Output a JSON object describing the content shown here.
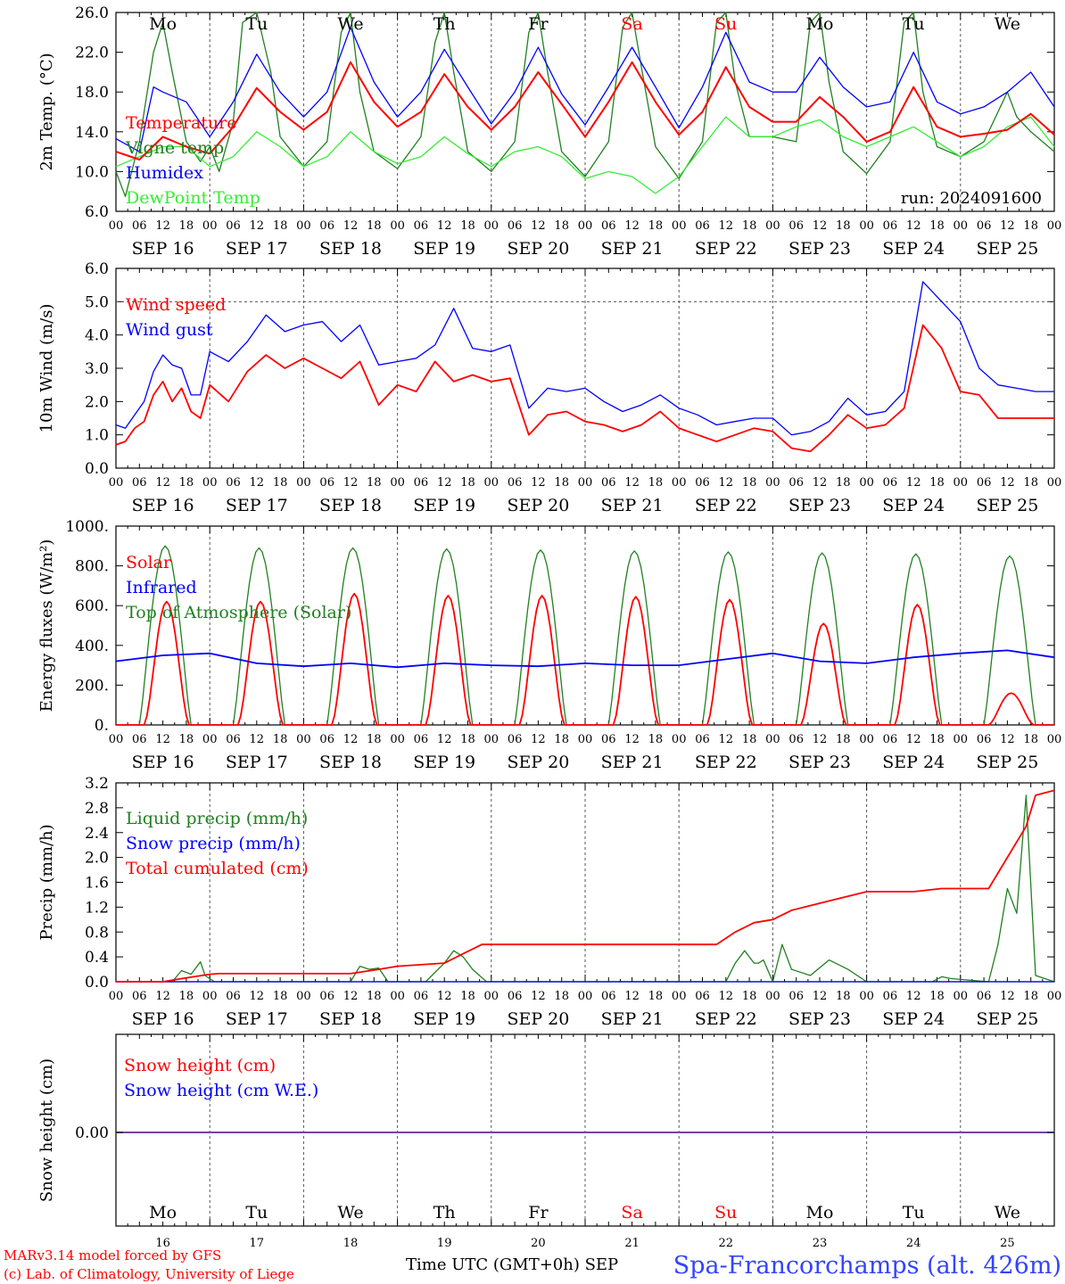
{
  "run_label": "run: 2024091600",
  "footer": {
    "model": "MARv3.14 model forced by GFS",
    "lab": "(c) Lab. of Climatology, University of Liege",
    "xlabel": "Time UTC (GMT+0h) SEP",
    "station": "Spa-Francorchamps (alt. 426m)"
  },
  "colors": {
    "temperature": "#ff0000",
    "vigne": "#208020",
    "humidex": "#0000ff",
    "dewpoint": "#33ee33",
    "weekend": "#ff0000",
    "weekday": "#000000"
  },
  "days": [
    {
      "abbr": "Mo",
      "date": "SEP 16",
      "num": "16",
      "weekend": false
    },
    {
      "abbr": "Tu",
      "date": "SEP 17",
      "num": "17",
      "weekend": false
    },
    {
      "abbr": "We",
      "date": "SEP 18",
      "num": "18",
      "weekend": false
    },
    {
      "abbr": "Th",
      "date": "SEP 19",
      "num": "19",
      "weekend": false
    },
    {
      "abbr": "Fr",
      "date": "SEP 20",
      "num": "20",
      "weekend": false
    },
    {
      "abbr": "Sa",
      "date": "SEP 21",
      "num": "21",
      "weekend": true
    },
    {
      "abbr": "Su",
      "date": "SEP 22",
      "num": "22",
      "weekend": true
    },
    {
      "abbr": "Mo",
      "date": "SEP 23",
      "num": "23",
      "weekend": false
    },
    {
      "abbr": "Tu",
      "date": "SEP 24",
      "num": "24",
      "weekend": false
    },
    {
      "abbr": "We",
      "date": "SEP 25",
      "num": "25",
      "weekend": false
    }
  ],
  "hour_ticks": [
    "00",
    "06",
    "12",
    "18"
  ],
  "chart_data": [
    {
      "id": "temp",
      "type": "line",
      "ylabel": "2m Temp. (°C)",
      "ylim": [
        6,
        26
      ],
      "yticks": [
        "6.0",
        "10.0",
        "14.0",
        "18.0",
        "22.0",
        "26.0"
      ],
      "x_unit": "days since 2024-09-16 00 UTC",
      "series": [
        {
          "name": "Temperature",
          "color": "#ff0000",
          "x": [
            0,
            0.25,
            0.5,
            0.75,
            1,
            1.25,
            1.5,
            1.75,
            2,
            2.25,
            2.5,
            2.75,
            3,
            3.25,
            3.5,
            3.75,
            4,
            4.25,
            4.5,
            4.75,
            5,
            5.25,
            5.5,
            5.75,
            6,
            6.25,
            6.5,
            6.75,
            7,
            7.25,
            7.5,
            7.75,
            8,
            8.25,
            8.5,
            8.75,
            9,
            9.25,
            9.5,
            9.75,
            10
          ],
          "y": [
            12.0,
            11.2,
            13.5,
            12.5,
            11.8,
            14.5,
            18.4,
            16.0,
            14.2,
            16.0,
            21.0,
            17.0,
            14.5,
            16.0,
            19.8,
            16.5,
            14.2,
            16.5,
            20.0,
            16.8,
            13.5,
            17.0,
            21.0,
            17.0,
            13.7,
            16.0,
            20.5,
            16.5,
            15.0,
            15.0,
            17.5,
            15.5,
            13.0,
            14.0,
            18.5,
            14.5,
            13.5,
            13.8,
            14.2,
            15.8,
            13.7
          ]
        },
        {
          "name": "Vigne temp",
          "color": "#208020",
          "x": [
            0,
            0.1,
            0.25,
            0.4,
            0.5,
            0.6,
            0.75,
            0.9,
            1,
            1.1,
            1.25,
            1.35,
            1.5,
            1.65,
            1.75,
            2,
            2.25,
            2.4,
            2.5,
            2.6,
            2.75,
            3,
            3.25,
            3.4,
            3.5,
            3.6,
            3.75,
            4,
            4.25,
            4.4,
            4.5,
            4.6,
            4.75,
            5,
            5.25,
            5.4,
            5.5,
            5.6,
            5.75,
            6,
            6.25,
            6.4,
            6.5,
            6.6,
            6.75,
            7,
            7.25,
            7.4,
            7.5,
            7.6,
            7.75,
            8,
            8.25,
            8.4,
            8.5,
            8.6,
            8.75,
            9,
            9.25,
            9.4,
            9.5,
            9.6,
            9.75,
            10
          ],
          "y": [
            10.0,
            7.5,
            13.0,
            22.0,
            25.0,
            20.0,
            13.0,
            11.0,
            12.5,
            10.0,
            15.0,
            25.0,
            26.0,
            20.0,
            13.5,
            10.5,
            13.0,
            24.0,
            26.0,
            18.0,
            12.0,
            10.3,
            13.5,
            23.0,
            26.0,
            20.0,
            12.0,
            10.0,
            13.0,
            24.0,
            26.0,
            20.0,
            12.0,
            9.5,
            13.0,
            24.5,
            26.0,
            20.5,
            12.5,
            9.3,
            13.0,
            25.0,
            26.0,
            19.0,
            13.5,
            13.5,
            13.0,
            25.0,
            26.0,
            19.0,
            12.0,
            9.8,
            13.0,
            25.0,
            26.0,
            18.0,
            12.5,
            11.5,
            13.0,
            16.0,
            18.0,
            15.5,
            14.0,
            12.0
          ]
        },
        {
          "name": "Humidex",
          "color": "#0000ff",
          "x": [
            0,
            0.25,
            0.4,
            0.5,
            0.75,
            1,
            1.25,
            1.5,
            1.75,
            2,
            2.25,
            2.5,
            2.75,
            3,
            3.25,
            3.5,
            3.75,
            4,
            4.25,
            4.5,
            4.75,
            5,
            5.25,
            5.5,
            5.75,
            6,
            6.25,
            6.5,
            6.75,
            7,
            7.25,
            7.5,
            7.75,
            8,
            8.25,
            8.5,
            8.75,
            9,
            9.25,
            9.5,
            9.75,
            10
          ],
          "y": [
            13.3,
            12.0,
            18.5,
            18.0,
            17.0,
            13.5,
            17.0,
            21.8,
            18.0,
            15.5,
            18.0,
            24.5,
            19.0,
            15.5,
            18.0,
            22.3,
            18.5,
            14.8,
            18.0,
            22.5,
            17.8,
            14.7,
            18.5,
            22.5,
            18.5,
            14.4,
            18.5,
            24.0,
            19.0,
            18.0,
            18.0,
            21.5,
            18.5,
            16.5,
            17.0,
            22.0,
            17.0,
            15.8,
            16.5,
            18.0,
            20.0,
            16.5
          ]
        },
        {
          "name": "DewPoint Temp",
          "color": "#33ee33",
          "x": [
            0,
            0.25,
            0.5,
            0.75,
            1,
            1.25,
            1.5,
            1.75,
            2,
            2.25,
            2.5,
            2.75,
            3,
            3.25,
            3.5,
            3.75,
            4,
            4.25,
            4.5,
            4.75,
            5,
            5.25,
            5.5,
            5.75,
            6,
            6.25,
            6.5,
            6.75,
            7,
            7.25,
            7.5,
            7.75,
            8,
            8.25,
            8.5,
            8.75,
            9,
            9.25,
            9.5,
            9.75,
            10
          ],
          "y": [
            10.5,
            11.5,
            12.5,
            12.5,
            10.5,
            11.5,
            14.0,
            12.5,
            10.5,
            11.5,
            14.0,
            12.0,
            10.8,
            11.5,
            13.5,
            11.8,
            10.5,
            12.0,
            12.5,
            11.5,
            9.3,
            10.0,
            9.5,
            7.8,
            9.5,
            12.5,
            15.5,
            13.5,
            13.5,
            14.5,
            15.2,
            13.5,
            12.5,
            13.5,
            14.5,
            13.0,
            11.5,
            12.5,
            14.5,
            15.5,
            12.5
          ]
        }
      ]
    },
    {
      "id": "wind",
      "type": "line",
      "ylabel": "10m Wind (m/s)",
      "ylim": [
        0,
        6
      ],
      "yticks": [
        "0.0",
        "1.0",
        "2.0",
        "3.0",
        "4.0",
        "5.0",
        "6.0"
      ],
      "refline": 5.0,
      "series": [
        {
          "name": "Wind speed",
          "color": "#ff0000",
          "x": [
            0,
            0.1,
            0.2,
            0.3,
            0.4,
            0.5,
            0.6,
            0.7,
            0.8,
            0.9,
            1,
            1.2,
            1.4,
            1.6,
            1.8,
            2,
            2.2,
            2.4,
            2.6,
            2.8,
            3,
            3.2,
            3.4,
            3.6,
            3.8,
            4,
            4.2,
            4.4,
            4.6,
            4.8,
            5,
            5.2,
            5.4,
            5.6,
            5.8,
            6,
            6.2,
            6.4,
            6.6,
            6.8,
            7,
            7.2,
            7.4,
            7.6,
            7.8,
            8,
            8.2,
            8.4,
            8.6,
            8.8,
            9,
            9.2,
            9.4,
            9.6,
            9.8,
            10
          ],
          "y": [
            0.7,
            0.8,
            1.2,
            1.4,
            2.2,
            2.6,
            2.0,
            2.4,
            1.7,
            1.5,
            2.5,
            2.0,
            2.9,
            3.4,
            3.0,
            3.3,
            3.0,
            2.7,
            3.2,
            1.9,
            2.5,
            2.3,
            3.2,
            2.6,
            2.8,
            2.6,
            2.7,
            1.0,
            1.6,
            1.7,
            1.4,
            1.3,
            1.1,
            1.3,
            1.7,
            1.2,
            1.0,
            0.8,
            1.0,
            1.2,
            1.1,
            0.6,
            0.5,
            1.0,
            1.6,
            1.2,
            1.3,
            1.8,
            4.3,
            3.6,
            2.3,
            2.2,
            1.5,
            1.5,
            1.5,
            1.5
          ]
        },
        {
          "name": "Wind gust",
          "color": "#0000ff",
          "x": [
            0,
            0.1,
            0.2,
            0.3,
            0.4,
            0.5,
            0.6,
            0.7,
            0.8,
            0.9,
            1,
            1.2,
            1.4,
            1.6,
            1.8,
            2,
            2.2,
            2.4,
            2.6,
            2.8,
            3,
            3.2,
            3.4,
            3.6,
            3.8,
            4,
            4.2,
            4.4,
            4.6,
            4.8,
            5,
            5.2,
            5.4,
            5.6,
            5.8,
            6,
            6.2,
            6.4,
            6.6,
            6.8,
            7,
            7.2,
            7.4,
            7.6,
            7.8,
            8,
            8.2,
            8.4,
            8.6,
            8.8,
            9,
            9.2,
            9.4,
            9.6,
            9.8,
            10
          ],
          "y": [
            1.3,
            1.2,
            1.6,
            2.0,
            2.9,
            3.4,
            3.1,
            3.0,
            2.2,
            2.2,
            3.5,
            3.2,
            3.8,
            4.6,
            4.1,
            4.3,
            4.4,
            3.8,
            4.3,
            3.1,
            3.2,
            3.3,
            3.7,
            4.8,
            3.6,
            3.5,
            3.7,
            1.8,
            2.4,
            2.3,
            2.4,
            2.0,
            1.7,
            1.9,
            2.2,
            1.8,
            1.6,
            1.3,
            1.4,
            1.5,
            1.5,
            1.0,
            1.1,
            1.4,
            2.1,
            1.6,
            1.7,
            2.3,
            5.6,
            5.0,
            4.4,
            3.0,
            2.5,
            2.4,
            2.3,
            2.3
          ]
        }
      ]
    },
    {
      "id": "energy",
      "type": "line",
      "ylabel": "Energy fluxes (W/m²)",
      "ylim": [
        0,
        1000
      ],
      "yticks": [
        "0.",
        "200.",
        "400.",
        "600.",
        "800.",
        "1000."
      ],
      "solar_peaks": [
        620,
        620,
        660,
        650,
        650,
        645,
        630,
        510,
        605,
        160
      ],
      "toa_peaks": [
        900,
        890,
        890,
        885,
        880,
        875,
        870,
        865,
        860,
        850
      ],
      "infrared": {
        "x": [
          0,
          0.5,
          1,
          1.5,
          2,
          2.5,
          3,
          3.5,
          4,
          4.5,
          5,
          5.5,
          6,
          6.5,
          7,
          7.5,
          8,
          8.5,
          9,
          9.5,
          10
        ],
        "y": [
          320,
          350,
          360,
          310,
          295,
          310,
          290,
          310,
          300,
          295,
          310,
          300,
          300,
          330,
          360,
          320,
          310,
          340,
          360,
          375,
          340
        ]
      },
      "series": [
        {
          "name": "Solar",
          "color": "#ff0000"
        },
        {
          "name": "Infrared",
          "color": "#0000ff"
        },
        {
          "name": "Top of Atmosphere (Solar)",
          "color": "#208020"
        }
      ]
    },
    {
      "id": "precip",
      "type": "line",
      "ylabel": "Precip (mm/h)",
      "ylim": [
        0,
        3.2
      ],
      "yticks": [
        "0.0",
        "0.4",
        "0.8",
        "1.2",
        "1.6",
        "2.0",
        "2.4",
        "2.8",
        "3.2"
      ],
      "series": [
        {
          "name": "Liquid precip (mm/h)",
          "color": "#208020",
          "x": [
            0,
            0.6,
            0.7,
            0.8,
            0.9,
            0.95,
            1,
            1.05,
            2.5,
            2.6,
            2.7,
            2.8,
            2.9,
            3.3,
            3.5,
            3.6,
            3.7,
            3.8,
            3.95,
            6.5,
            6.6,
            6.7,
            6.8,
            6.85,
            6.9,
            7.0,
            7.1,
            7.2,
            7.4,
            7.6,
            7.8,
            8.0,
            8.7,
            8.8,
            8.9,
            9.3,
            9.4,
            9.5,
            9.6,
            9.7,
            9.8,
            9.9,
            10
          ],
          "y": [
            0,
            0,
            0.18,
            0.12,
            0.32,
            0.1,
            0.05,
            0,
            0,
            0.25,
            0.2,
            0.22,
            0,
            0,
            0.3,
            0.5,
            0.4,
            0.2,
            0,
            0,
            0.3,
            0.5,
            0.3,
            0.3,
            0.35,
            0,
            0.6,
            0.2,
            0.1,
            0.35,
            0.2,
            0,
            0,
            0.08,
            0.05,
            0,
            0.6,
            1.5,
            1.1,
            3.0,
            0.1,
            0.05,
            0
          ]
        },
        {
          "name": "Snow precip (mm/h)",
          "color": "#0000ff",
          "x": [
            0,
            10
          ],
          "y": [
            0,
            0
          ]
        },
        {
          "name": "Total cumulated (cm)",
          "color": "#ff0000",
          "x": [
            0,
            0.5,
            0.7,
            1.0,
            1.1,
            2.5,
            2.8,
            3.0,
            3.5,
            3.7,
            3.9,
            4.5,
            6.4,
            6.6,
            6.8,
            7.0,
            7.2,
            7.6,
            8.0,
            8.5,
            8.8,
            9.3,
            9.5,
            9.7,
            9.8,
            10
          ],
          "y": [
            0,
            0,
            0.05,
            0.12,
            0.13,
            0.13,
            0.2,
            0.25,
            0.3,
            0.45,
            0.6,
            0.6,
            0.6,
            0.8,
            0.95,
            1.0,
            1.15,
            1.3,
            1.45,
            1.45,
            1.5,
            1.5,
            2.0,
            2.5,
            3.0,
            3.08
          ]
        }
      ]
    },
    {
      "id": "snow",
      "type": "line",
      "ylabel": "Snow height (cm)",
      "yticks": [
        "0.00"
      ],
      "series": [
        {
          "name": "Snow height (cm)",
          "color": "#ff0000"
        },
        {
          "name": "Snow height (cm W.E.)",
          "color": "#0000ff"
        }
      ],
      "value": 0.0
    }
  ]
}
